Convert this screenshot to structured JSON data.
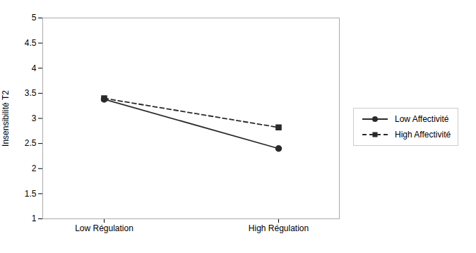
{
  "chart_data": {
    "type": "line",
    "categories": [
      "Low Régulation",
      "High Régulation"
    ],
    "series": [
      {
        "name": "Low Affectivité",
        "color": "#2a2a2a",
        "values": [
          3.38,
          2.4
        ],
        "marker": "circle",
        "line_style": "solid"
      },
      {
        "name": "High Affectivité",
        "color": "#2a2a2a",
        "values": [
          3.4,
          2.82
        ],
        "marker": "square",
        "line_style": "dashed"
      }
    ],
    "ylabel": "Insensibilité T2",
    "ylim": [
      1,
      5
    ],
    "yticks": [
      1,
      1.5,
      2,
      2.5,
      3,
      3.5,
      4,
      4.5,
      5
    ],
    "grid": false,
    "legend": "right"
  }
}
